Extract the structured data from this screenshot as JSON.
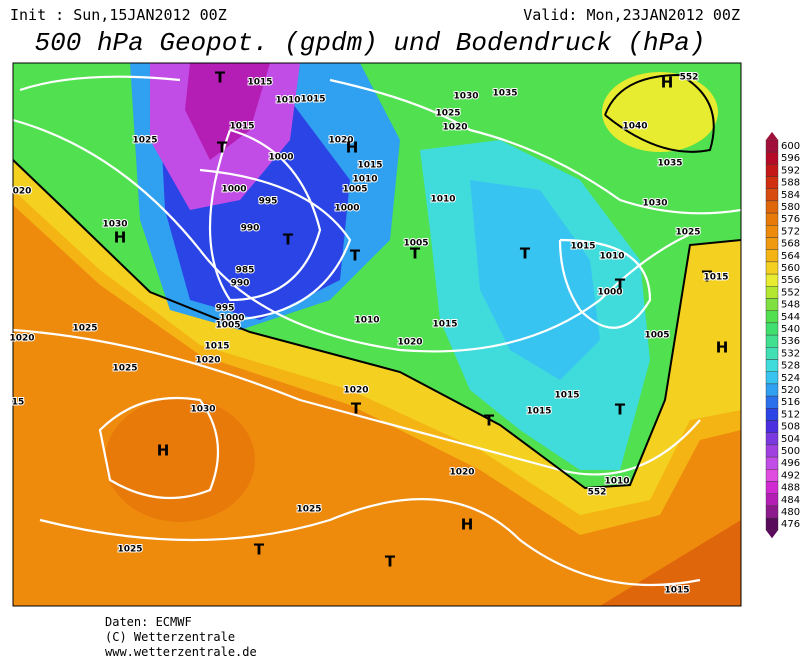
{
  "header": {
    "init": "Init : Sun,15JAN2012 00Z",
    "valid": "Valid: Mon,23JAN2012 00Z",
    "title": "500 hPa Geopot. (gpdm) und Bodendruck (hPa)"
  },
  "map": {
    "labels": [
      "T",
      "1015",
      "1010",
      "1015",
      "1015",
      "T",
      "1020",
      "H",
      "1000",
      "1015",
      "1010",
      "1005",
      "1000",
      "995",
      "1000",
      "1010",
      "990",
      "T",
      "T",
      "1005",
      "T",
      "985",
      "990",
      "995",
      "1000",
      "1005",
      "1030",
      "1035",
      "1025",
      "1020",
      "1025",
      "1030",
      "H",
      "1025",
      "1020",
      "1020",
      "1015",
      "1025",
      "1030",
      "H",
      "1010",
      "1015",
      "1020",
      "1020",
      "T",
      "1015",
      "1010",
      "1000",
      "T",
      "T",
      "1005",
      "1015",
      "1015",
      "T",
      "T",
      "1010",
      "1020",
      "H",
      "1025",
      "1025",
      "T",
      "T",
      "1015",
      "H",
      "1040",
      "1035",
      "1030",
      "1025",
      "T",
      "1015",
      "H",
      "552",
      "552",
      "15",
      "020"
    ]
  },
  "colorbar": {
    "levels": [
      600,
      596,
      592,
      588,
      584,
      580,
      576,
      572,
      568,
      564,
      560,
      556,
      552,
      548,
      544,
      540,
      536,
      532,
      528,
      524,
      520,
      516,
      512,
      508,
      504,
      500,
      496,
      492,
      488,
      484,
      480,
      476
    ],
    "colors": [
      "#a0103a",
      "#b40a28",
      "#c41818",
      "#d03010",
      "#d84c10",
      "#e0660c",
      "#e87a0a",
      "#ee8a0c",
      "#f09a10",
      "#f4b414",
      "#f4d020",
      "#e8ec30",
      "#b4e830",
      "#80e040",
      "#50e050",
      "#40e070",
      "#40e090",
      "#40e0b4",
      "#40dcdc",
      "#38c4f0",
      "#30a0f0",
      "#2a70ec",
      "#2a44e6",
      "#4a2ee0",
      "#7a38e0",
      "#a040e0",
      "#c24ce6",
      "#e04ce0",
      "#d22ad2",
      "#b41eb4",
      "#8c1a8c",
      "#5a0a5a"
    ]
  },
  "footer": {
    "source": "Daten: ECMWF",
    "copyright": "(C) Wetterzentrale",
    "url": "www.wetterzentrale.de"
  }
}
